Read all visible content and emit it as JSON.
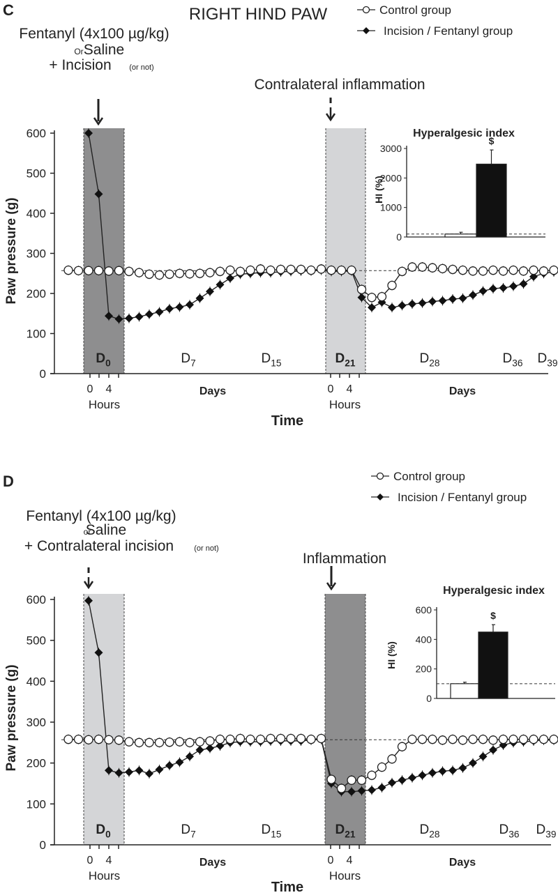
{
  "chart_data": [
    {
      "panel_label": "C",
      "type": "line",
      "title": "RIGHT HIND PAW",
      "xlabel": "Time",
      "ylabel": "Paw pressure (g)",
      "ylim": [
        0,
        600
      ],
      "yticks": [
        0,
        100,
        200,
        300,
        400,
        500,
        600
      ],
      "baseline": 257,
      "legend": [
        {
          "name": "Control group",
          "marker": "open-circle"
        },
        {
          "name": "Incision / Fentanyl group",
          "marker": "filled-diamond"
        }
      ],
      "legend_position": "top-right",
      "annotations": [
        {
          "lines": [
            "Fentanyl (4x100 µg/kg)",
            "Or",
            "Saline",
            "+ Incision",
            "(or not)"
          ],
          "arrow": "solid"
        },
        {
          "lines": [
            "Contralateral inflammation"
          ],
          "arrow": "dashed"
        }
      ],
      "shaded_regions": [
        {
          "label": "D",
          "sub": "0",
          "shade": "dark"
        },
        {
          "label": "D",
          "sub": "21",
          "shade": "light"
        }
      ],
      "day_labels": [
        {
          "label": "D",
          "sub": "7"
        },
        {
          "label": "D",
          "sub": "15"
        },
        {
          "label": "D",
          "sub": "28"
        },
        {
          "label": "D",
          "sub": "36"
        },
        {
          "label": "D",
          "sub": "39"
        }
      ],
      "hour_ticks": [
        "0",
        "4"
      ],
      "hours_label": "Hours",
      "days_label": "Days",
      "series": [
        {
          "name": "Control group",
          "values": [
            258,
            257,
            257,
            257,
            256,
            257,
            255,
            252,
            248,
            246,
            248,
            250,
            249,
            250,
            252,
            255,
            258,
            255,
            258,
            261,
            258,
            260,
            260,
            260,
            258,
            261,
            258,
            258,
            258,
            210,
            190,
            192,
            220,
            255,
            266,
            266,
            264,
            262,
            260,
            258,
            256,
            256,
            258,
            256,
            258,
            256,
            258,
            256,
            258,
            256,
            258
          ]
        },
        {
          "name": "Incision / Fentanyl group",
          "values": [
            null,
            null,
            600,
            448,
            144,
            136,
            138,
            142,
            148,
            154,
            162,
            166,
            172,
            188,
            205,
            222,
            238,
            248,
            250,
            252,
            252,
            254,
            255,
            256,
            256,
            258,
            255,
            255,
            256,
            190,
            165,
            178,
            165,
            170,
            174,
            176,
            180,
            182,
            186,
            188,
            196,
            206,
            212,
            214,
            218,
            224,
            242,
            250,
            254,
            256,
            260
          ]
        },
        {
          "name": "Hyperalgesic index",
          "categories": [
            "Control group",
            "Incision / Fentanyl group"
          ],
          "values": [
            100,
            2470
          ],
          "errors": [
            60,
            480
          ],
          "ylim": [
            0,
            3000
          ],
          "yticks": [
            0,
            1000,
            2000,
            3000
          ],
          "ylabel": "HI (%)",
          "reference_line": 100,
          "significance": [
            "",
            "$"
          ]
        }
      ]
    },
    {
      "panel_label": "D",
      "type": "line",
      "title": "",
      "xlabel": "Time",
      "ylabel": "Paw pressure (g)",
      "ylim": [
        0,
        600
      ],
      "yticks": [
        0,
        100,
        200,
        300,
        400,
        500,
        600
      ],
      "baseline": 257,
      "legend": [
        {
          "name": "Control group",
          "marker": "open-circle"
        },
        {
          "name": "Incision / Fentanyl group",
          "marker": "filled-diamond"
        }
      ],
      "legend_position": "top-right",
      "annotations": [
        {
          "lines": [
            "Fentanyl (4x100 µg/kg)",
            "or",
            "Saline",
            "+ Contralateral incision",
            "(or not)"
          ],
          "arrow": "dashed"
        },
        {
          "lines": [
            "Inflammation"
          ],
          "arrow": "solid"
        }
      ],
      "shaded_regions": [
        {
          "label": "D",
          "sub": "0",
          "shade": "light"
        },
        {
          "label": "D",
          "sub": "21",
          "shade": "dark"
        }
      ],
      "day_labels": [
        {
          "label": "D",
          "sub": "7"
        },
        {
          "label": "D",
          "sub": "15"
        },
        {
          "label": "D",
          "sub": "28"
        },
        {
          "label": "D",
          "sub": "36"
        },
        {
          "label": "D",
          "sub": "39"
        }
      ],
      "hour_ticks": [
        "0",
        "4"
      ],
      "hours_label": "Hours",
      "days_label": "Days",
      "series": [
        {
          "name": "Control group",
          "values": [
            258,
            258,
            257,
            258,
            257,
            256,
            252,
            250,
            250,
            250,
            251,
            252,
            250,
            252,
            254,
            258,
            258,
            260,
            258,
            258,
            260,
            260,
            260,
            260,
            258,
            260,
            160,
            138,
            158,
            158,
            170,
            190,
            210,
            240,
            258,
            258,
            258,
            256,
            258,
            256,
            258,
            258,
            256,
            258,
            258,
            258,
            258,
            258,
            258,
            258,
            258
          ]
        },
        {
          "name": "Incision / Fentanyl group",
          "values": [
            null,
            null,
            597,
            470,
            182,
            176,
            178,
            182,
            174,
            184,
            194,
            202,
            216,
            232,
            236,
            242,
            250,
            252,
            252,
            252,
            254,
            254,
            254,
            254,
            256,
            258,
            150,
            130,
            130,
            132,
            134,
            140,
            152,
            158,
            164,
            170,
            176,
            180,
            182,
            188,
            200,
            216,
            232,
            244,
            250,
            252,
            254,
            256,
            256,
            256,
            256
          ]
        },
        {
          "name": "Hyperalgesic index",
          "categories": [
            "Control group",
            "Incision / Fentanyl group"
          ],
          "values": [
            100,
            450
          ],
          "errors": [
            10,
            50
          ],
          "ylim": [
            0,
            600
          ],
          "yticks": [
            0,
            200,
            400,
            600
          ],
          "ylabel": "HI (%)",
          "reference_line": 100,
          "significance": [
            "",
            "$"
          ]
        }
      ]
    }
  ]
}
